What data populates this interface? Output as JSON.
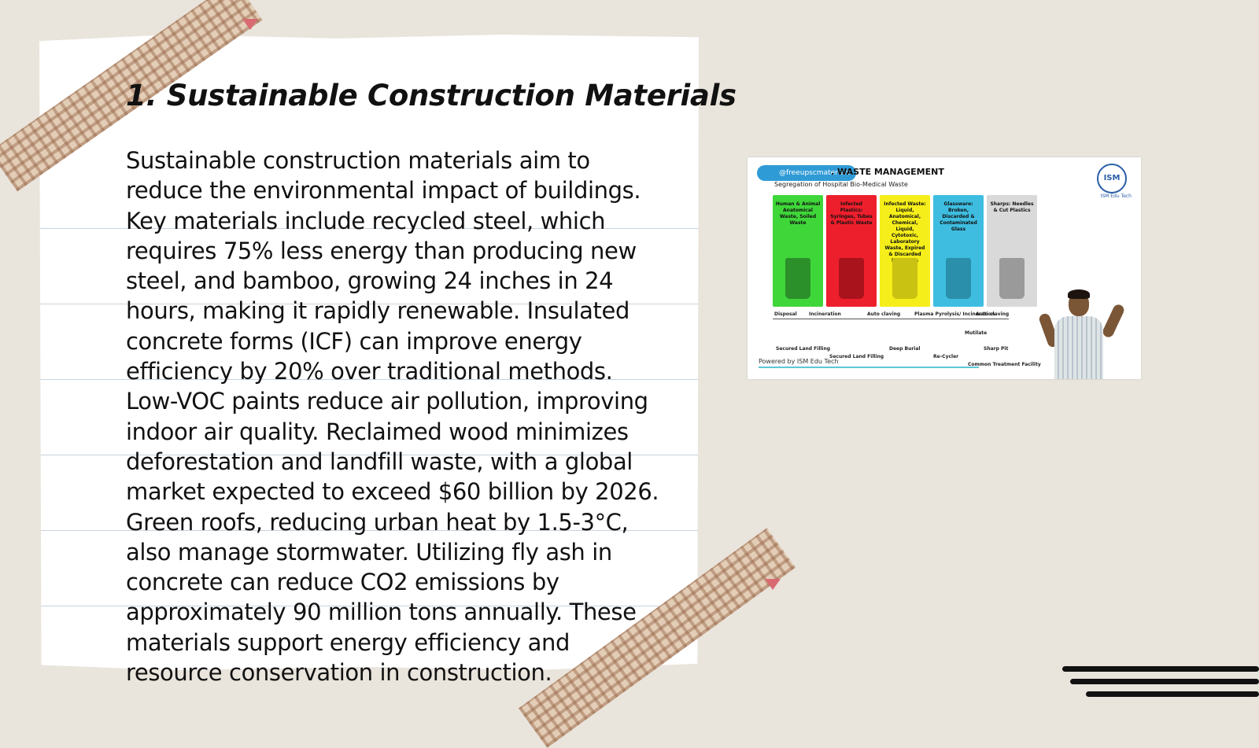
{
  "slide": {
    "title": "1. Sustainable Construction Materials",
    "body": "Sustainable construction materials aim to reduce the environmental impact of buildings. Key materials include recycled steel, which requires 75% less energy than producing new steel, and bamboo, growing 24 inches in 24 hours, making it rapidly renewable. Insulated concrete forms (ICF) can improve energy efficiency by 20% over traditional methods. Low-VOC paints reduce air pollution, improving indoor air quality. Reclaimed wood minimizes deforestation and landfill waste, with a global market expected to exceed $60 billion by 2026. Green roofs, reducing urban heat by 1.5-3°C, also manage stormwater. Utilizing fly ash in concrete can reduce CO2 emissions by approximately 90 million tons annually. These materials support energy efficiency and resource conservation in construction."
  },
  "video": {
    "handle": "@freeupscmaterials",
    "title": ". WASTE MANAGEMENT",
    "subtitle": "Segregation of Hospital Bio-Medical Waste",
    "logo": "ISM",
    "logo_caption": "ISM Edu Tech",
    "footer": "Powered by ISM Edu Tech",
    "bins": [
      {
        "label": "Human & Animal Anatomical Waste, Soiled Waste",
        "color": "#3fd63a"
      },
      {
        "label": "Infected Plastics: Syringes, Tubes & Plastic Waste",
        "color": "#ee1f2c"
      },
      {
        "label": "Infected Waste: Liquid, Anatomical, Chemical, Liquid, Cytotoxic, Laboratory Waste, Expired & Discarded Medicines",
        "color": "#f5ee1a"
      },
      {
        "label": "Glassware: Broken, Discarded & Contaminated Glass",
        "color": "#3ebde0"
      },
      {
        "label": "Sharps: Needles & Cut Plastics",
        "color": "#d9d9d9"
      }
    ],
    "process_labels": [
      "Disposal",
      "Incineration",
      "Auto claving",
      "Plasma Pyrolysis/ Incineration",
      "Auto claving",
      "Mutilate"
    ],
    "end_labels": [
      "Secured Land Filling",
      "Secured Land Filling",
      "Deep Burial",
      "Re-Cycler",
      "Sharp Pit",
      "Common Treatment Facility"
    ]
  }
}
